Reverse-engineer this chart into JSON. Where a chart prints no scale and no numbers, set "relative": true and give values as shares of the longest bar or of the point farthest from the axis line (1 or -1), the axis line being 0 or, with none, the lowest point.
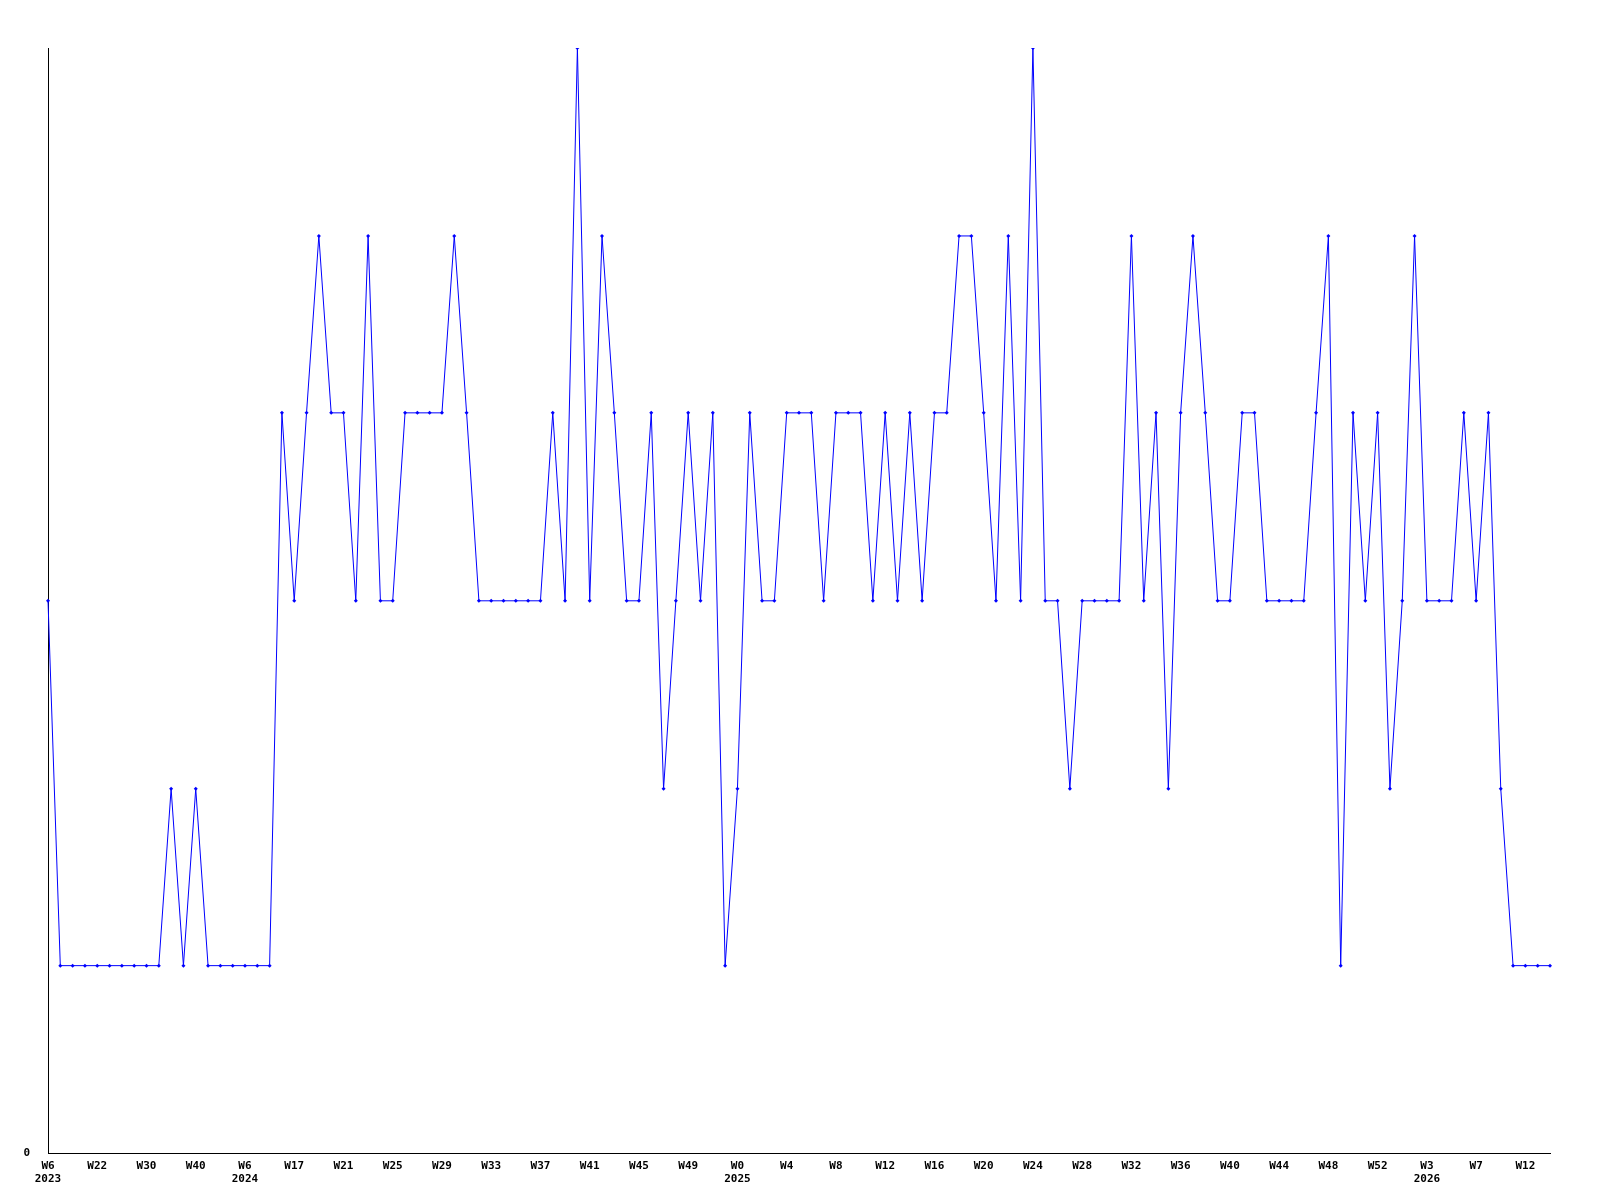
{
  "chart_data": {
    "type": "line",
    "relative": true,
    "annotations": [
      "0"
    ],
    "grid": false,
    "legend": false,
    "marker": "diamond",
    "line_style": "solid",
    "categories": [
      "W6\n2023",
      null,
      null,
      null,
      "W22",
      null,
      null,
      null,
      "W30",
      null,
      null,
      null,
      "W40",
      null,
      null,
      null,
      "W6\n2024",
      null,
      null,
      null,
      "W17",
      null,
      null,
      null,
      "W21",
      null,
      null,
      null,
      "W25",
      null,
      null,
      null,
      "W29",
      null,
      null,
      null,
      "W33",
      null,
      null,
      null,
      "W37",
      null,
      null,
      null,
      "W41",
      null,
      null,
      null,
      "W45",
      null,
      null,
      null,
      "W49",
      null,
      null,
      null,
      "W0\n2025",
      null,
      null,
      null,
      "W4",
      null,
      null,
      null,
      "W8",
      null,
      null,
      null,
      "W12",
      null,
      null,
      null,
      "W16",
      null,
      null,
      null,
      "W20",
      null,
      null,
      null,
      "W24",
      null,
      null,
      null,
      "W28",
      null,
      null,
      null,
      "W32",
      null,
      null,
      null,
      "W36",
      null,
      null,
      null,
      "W40",
      null,
      null,
      null,
      "W44",
      null,
      null,
      null,
      "W48",
      null,
      null,
      null,
      "W52",
      null,
      null,
      null,
      "W3\n2026",
      null,
      null,
      null,
      "W7",
      null,
      null,
      null,
      "W12",
      null,
      null
    ],
    "series": [
      {
        "color": "#0000ff",
        "values": [
          0.5,
          0.17,
          0.17,
          0.17,
          0.17,
          0.17,
          0.17,
          0.17,
          0.17,
          0.17,
          0.33,
          0.17,
          0.33,
          0.17,
          0.17,
          0.17,
          0.17,
          0.17,
          0.17,
          0.67,
          0.5,
          0.67,
          0.83,
          0.67,
          0.67,
          0.5,
          0.83,
          0.5,
          0.5,
          0.67,
          0.67,
          0.67,
          0.67,
          0.83,
          0.67,
          0.5,
          0.5,
          0.5,
          0.5,
          0.5,
          0.5,
          0.67,
          0.5,
          1,
          0.5,
          0.83,
          0.67,
          0.5,
          0.5,
          0.67,
          0.33,
          0.5,
          0.67,
          0.5,
          0.67,
          0.17,
          0.33,
          0.67,
          0.5,
          0.5,
          0.67,
          0.67,
          0.67,
          0.5,
          0.67,
          0.67,
          0.67,
          0.5,
          0.67,
          0.5,
          0.67,
          0.5,
          0.67,
          0.67,
          0.83,
          0.83,
          0.67,
          0.5,
          0.83,
          0.5,
          1,
          0.5,
          0.5,
          0.33,
          0.5,
          0.5,
          0.5,
          0.5,
          0.83,
          0.5,
          0.67,
          0.33,
          0.67,
          0.83,
          0.67,
          0.5,
          0.5,
          0.67,
          0.67,
          0.5,
          0.5,
          0.5,
          0.5,
          0.67,
          0.83,
          0.17,
          0.67,
          0.5,
          0.67,
          0.33,
          0.5,
          0.83,
          0.5,
          0.5,
          0.5,
          0.67,
          0.5,
          0.67,
          0.33,
          0.17,
          0.17,
          0.17,
          0.17
        ]
      }
    ]
  }
}
